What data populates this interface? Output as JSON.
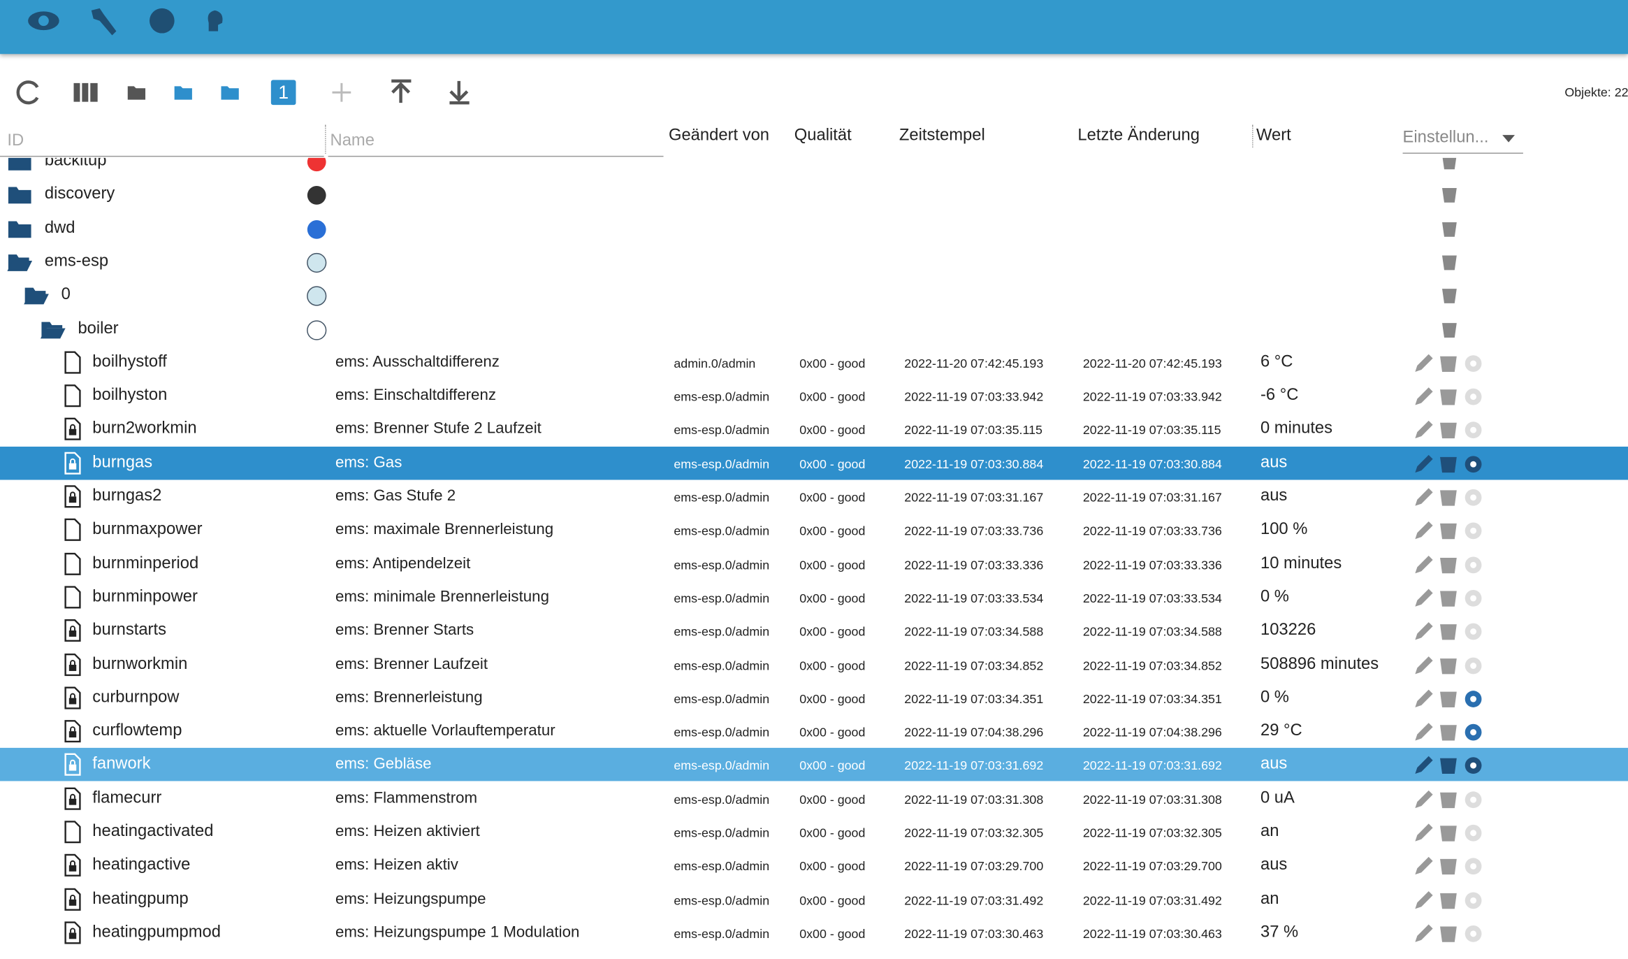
{
  "toolbar": {
    "objects": "Objekte: 22",
    "counter": "1"
  },
  "header": {
    "id": "ID",
    "name": "Name",
    "changed_by": "Geändert von",
    "quality": "Qualität",
    "timestamp": "Zeitstempel",
    "last_change": "Letzte Änderung",
    "value": "Wert",
    "settings": "Einstellun..."
  },
  "tree": [
    "backitup",
    "discovery",
    "dwd",
    "ems-esp",
    "0",
    "boiler"
  ],
  "rows": [
    {
      "id": "boilhystoff",
      "name": "ems: Ausschaltdifferenz",
      "changed_by": "admin.0/admin",
      "quality": "0x00 - good",
      "timestamp": "2022-11-20 07:42:45.193",
      "last_change": "2022-11-20 07:42:45.193",
      "value": "6 °C"
    },
    {
      "id": "boilhyston",
      "name": "ems: Einschaltdifferenz",
      "changed_by": "ems-esp.0/admin",
      "quality": "0x00 - good",
      "timestamp": "2022-11-19 07:03:33.942",
      "last_change": "2022-11-19 07:03:33.942",
      "value": "-6 °C"
    },
    {
      "id": "burn2workmin",
      "name": "ems: Brenner Stufe 2 Laufzeit",
      "changed_by": "ems-esp.0/admin",
      "quality": "0x00 - good",
      "timestamp": "2022-11-19 07:03:35.115",
      "last_change": "2022-11-19 07:03:35.115",
      "value": "0 minutes"
    },
    {
      "id": "burngas",
      "name": "ems: Gas",
      "changed_by": "ems-esp.0/admin",
      "quality": "0x00 - good",
      "timestamp": "2022-11-19 07:03:30.884",
      "last_change": "2022-11-19 07:03:30.884",
      "value": "aus"
    },
    {
      "id": "burngas2",
      "name": "ems: Gas Stufe 2",
      "changed_by": "ems-esp.0/admin",
      "quality": "0x00 - good",
      "timestamp": "2022-11-19 07:03:31.167",
      "last_change": "2022-11-19 07:03:31.167",
      "value": "aus"
    },
    {
      "id": "burnmaxpower",
      "name": "ems: maximale Brennerleistung",
      "changed_by": "ems-esp.0/admin",
      "quality": "0x00 - good",
      "timestamp": "2022-11-19 07:03:33.736",
      "last_change": "2022-11-19 07:03:33.736",
      "value": "100 %"
    },
    {
      "id": "burnminperiod",
      "name": "ems: Antipendelzeit",
      "changed_by": "ems-esp.0/admin",
      "quality": "0x00 - good",
      "timestamp": "2022-11-19 07:03:33.336",
      "last_change": "2022-11-19 07:03:33.336",
      "value": "10 minutes"
    },
    {
      "id": "burnminpower",
      "name": "ems: minimale Brennerleistung",
      "changed_by": "ems-esp.0/admin",
      "quality": "0x00 - good",
      "timestamp": "2022-11-19 07:03:33.534",
      "last_change": "2022-11-19 07:03:33.534",
      "value": "0 %"
    },
    {
      "id": "burnstarts",
      "name": "ems: Brenner Starts",
      "changed_by": "ems-esp.0/admin",
      "quality": "0x00 - good",
      "timestamp": "2022-11-19 07:03:34.588",
      "last_change": "2022-11-19 07:03:34.588",
      "value": "103226"
    },
    {
      "id": "burnworkmin",
      "name": "ems: Brenner Laufzeit",
      "changed_by": "ems-esp.0/admin",
      "quality": "0x00 - good",
      "timestamp": "2022-11-19 07:03:34.852",
      "last_change": "2022-11-19 07:03:34.852",
      "value": "508896 minutes"
    },
    {
      "id": "curburnpow",
      "name": "ems: Brennerleistung",
      "changed_by": "ems-esp.0/admin",
      "quality": "0x00 - good",
      "timestamp": "2022-11-19 07:03:34.351",
      "last_change": "2022-11-19 07:03:34.351",
      "value": "0 %"
    },
    {
      "id": "curflowtemp",
      "name": "ems: aktuelle Vorlauftemperatur",
      "changed_by": "ems-esp.0/admin",
      "quality": "0x00 - good",
      "timestamp": "2022-11-19 07:04:38.296",
      "last_change": "2022-11-19 07:04:38.296",
      "value": "29 °C"
    },
    {
      "id": "fanwork",
      "name": "ems: Gebläse",
      "changed_by": "ems-esp.0/admin",
      "quality": "0x00 - good",
      "timestamp": "2022-11-19 07:03:31.692",
      "last_change": "2022-11-19 07:03:31.692",
      "value": "aus"
    },
    {
      "id": "flamecurr",
      "name": "ems: Flammenstrom",
      "changed_by": "ems-esp.0/admin",
      "quality": "0x00 - good",
      "timestamp": "2022-11-19 07:03:31.308",
      "last_change": "2022-11-19 07:03:31.308",
      "value": "0 uA"
    },
    {
      "id": "heatingactivated",
      "name": "ems: Heizen aktiviert",
      "changed_by": "ems-esp.0/admin",
      "quality": "0x00 - good",
      "timestamp": "2022-11-19 07:03:32.305",
      "last_change": "2022-11-19 07:03:32.305",
      "value": "an"
    },
    {
      "id": "heatingactive",
      "name": "ems: Heizen aktiv",
      "changed_by": "ems-esp.0/admin",
      "quality": "0x00 - good",
      "timestamp": "2022-11-19 07:03:29.700",
      "last_change": "2022-11-19 07:03:29.700",
      "value": "aus"
    },
    {
      "id": "heatingpump",
      "name": "ems: Heizungspumpe",
      "changed_by": "ems-esp.0/admin",
      "quality": "0x00 - good",
      "timestamp": "2022-11-19 07:03:31.492",
      "last_change": "2022-11-19 07:03:31.492",
      "value": "an"
    },
    {
      "id": "heatingpumpmod",
      "name": "ems: Heizungspumpe 1 Modulation",
      "changed_by": "ems-esp.0/admin",
      "quality": "0x00 - good",
      "timestamp": "2022-11-19 07:03:30.463",
      "last_change": "2022-11-19 07:03:30.463",
      "value": "37 %"
    }
  ]
}
